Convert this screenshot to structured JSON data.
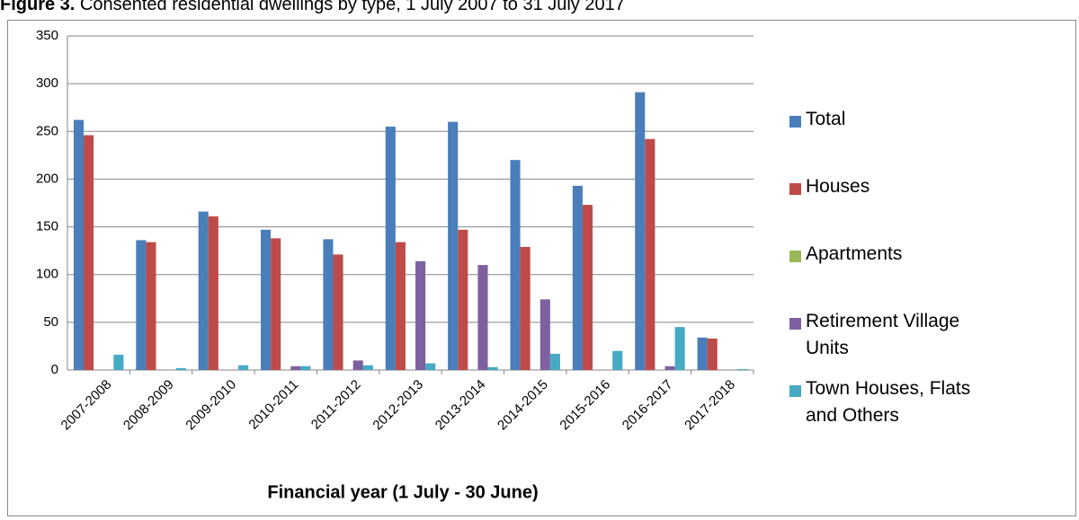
{
  "chart_data": {
    "type": "bar",
    "figure_label": "Figure 3.",
    "title": "Consented residential dwellings by type, 1 July 2007 to 31 July 2017",
    "x_label": "Financial year (1 July - 30 June)",
    "categories": [
      "2007-2008",
      "2008-2009",
      "2009-2010",
      "2010-2011",
      "2011-2012",
      "2012-2013",
      "2013-2014",
      "2014-2015",
      "2015-2016",
      "2016-2017",
      "2017-2018"
    ],
    "series": [
      {
        "name": "Total",
        "color": "#4a7ebb",
        "values": [
          262,
          136,
          166,
          147,
          137,
          255,
          260,
          220,
          193,
          291,
          34
        ]
      },
      {
        "name": "Houses",
        "color": "#be4b48",
        "values": [
          246,
          134,
          161,
          138,
          121,
          134,
          147,
          129,
          173,
          242,
          33
        ]
      },
      {
        "name": "Apartments",
        "color": "#98b954",
        "values": [
          0,
          0,
          0,
          0,
          0,
          0,
          0,
          0,
          0,
          0,
          0
        ]
      },
      {
        "name": "Retirement Village Units",
        "color": "#7d60a0",
        "values": [
          0,
          0,
          0,
          4,
          10,
          114,
          110,
          74,
          0,
          4,
          0
        ]
      },
      {
        "name": "Town Houses, Flats and Others",
        "color": "#46aac5",
        "values": [
          16,
          2,
          5,
          4,
          5,
          7,
          3,
          17,
          20,
          45,
          1
        ]
      }
    ],
    "ylim": [
      0,
      350
    ],
    "yticks": [
      0,
      50,
      100,
      150,
      200,
      250,
      300,
      350
    ],
    "grid": true,
    "legend": "right"
  }
}
